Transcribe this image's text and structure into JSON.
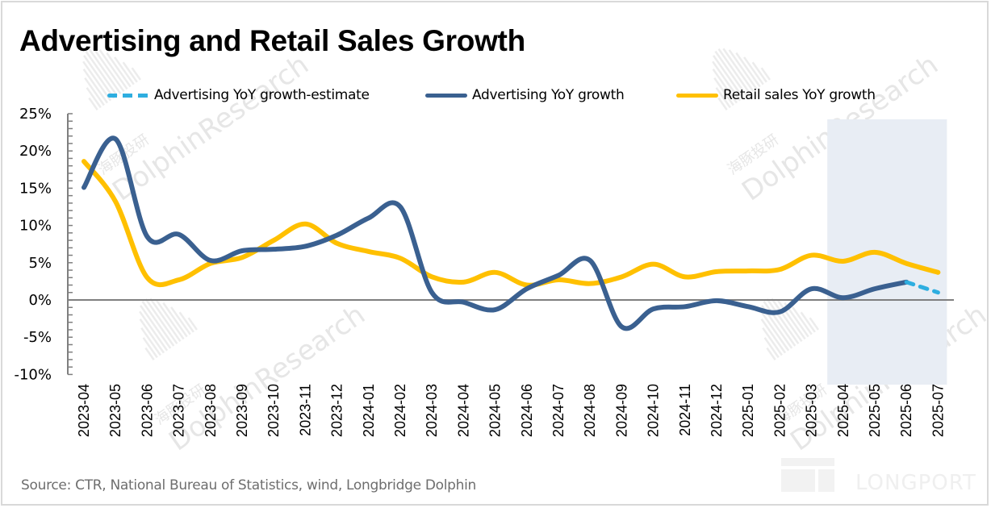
{
  "chart_data": {
    "type": "line",
    "title": "Advertising and Retail Sales Growth",
    "xlabel": "",
    "ylabel": "",
    "ylim": [
      -10,
      25
    ],
    "yticks": [
      25,
      20,
      15,
      10,
      5,
      0,
      -5,
      -10
    ],
    "ytick_labels": [
      "25%",
      "20%",
      "15%",
      "10%",
      "5%",
      "0%",
      "-5%",
      "-10%"
    ],
    "y_minor_tick_step": 1,
    "grid": false,
    "legend_position": "top",
    "categories": [
      "2023-04",
      "2023-05",
      "2023-06",
      "2023-07",
      "2023-08",
      "2023-09",
      "2023-10",
      "2023-11",
      "2023-12",
      "2024-01",
      "2024-02",
      "2024-03",
      "2024-04",
      "2024-05",
      "2024-06",
      "2024-07",
      "2024-08",
      "2024-09",
      "2024-10",
      "2024-11",
      "2024-12",
      "2025-01",
      "2025-02",
      "2025-03",
      "2025-04",
      "2025-05",
      "2025-06",
      "2025-07"
    ],
    "series": [
      {
        "name": "Advertising YoY growth-estimate",
        "color": "#2EAEE0",
        "style": "dashed",
        "values": [
          null,
          null,
          null,
          null,
          null,
          null,
          null,
          null,
          null,
          null,
          null,
          null,
          null,
          null,
          null,
          null,
          null,
          null,
          null,
          null,
          null,
          null,
          null,
          null,
          null,
          null,
          2.4,
          1.0
        ]
      },
      {
        "name": "Advertising YoY growth",
        "color": "#3A6090",
        "style": "solid",
        "values": [
          15.1,
          21.6,
          8.5,
          8.8,
          5.3,
          6.6,
          6.8,
          7.2,
          8.7,
          11.0,
          12.5,
          1.0,
          -0.3,
          -1.3,
          1.5,
          3.3,
          5.3,
          -3.6,
          -1.2,
          -0.9,
          -0.1,
          -0.9,
          -1.6,
          1.5,
          0.3,
          1.5,
          2.4,
          null
        ]
      },
      {
        "name": "Retail sales YoY growth",
        "color": "#FFC000",
        "style": "solid",
        "values": [
          18.6,
          13.2,
          3.0,
          2.7,
          4.9,
          5.7,
          8.0,
          10.2,
          7.6,
          6.5,
          5.6,
          3.1,
          2.4,
          3.7,
          2.0,
          2.7,
          2.2,
          3.1,
          4.8,
          3.1,
          3.8,
          3.9,
          4.1,
          6.0,
          5.2,
          6.4,
          4.9,
          3.7
        ]
      }
    ],
    "highlight_range": {
      "from": "2025-04",
      "to": "2025-07",
      "color": "#E8EDF4"
    },
    "source": "Source: CTR, National Bureau of Statistics, wind, Longbridge Dolphin"
  },
  "watermark": {
    "cn": "海豚投研",
    "en": "DolphinResearch",
    "brand": "LONGPORT"
  },
  "colors": {
    "axis": "#7F7F7F"
  }
}
